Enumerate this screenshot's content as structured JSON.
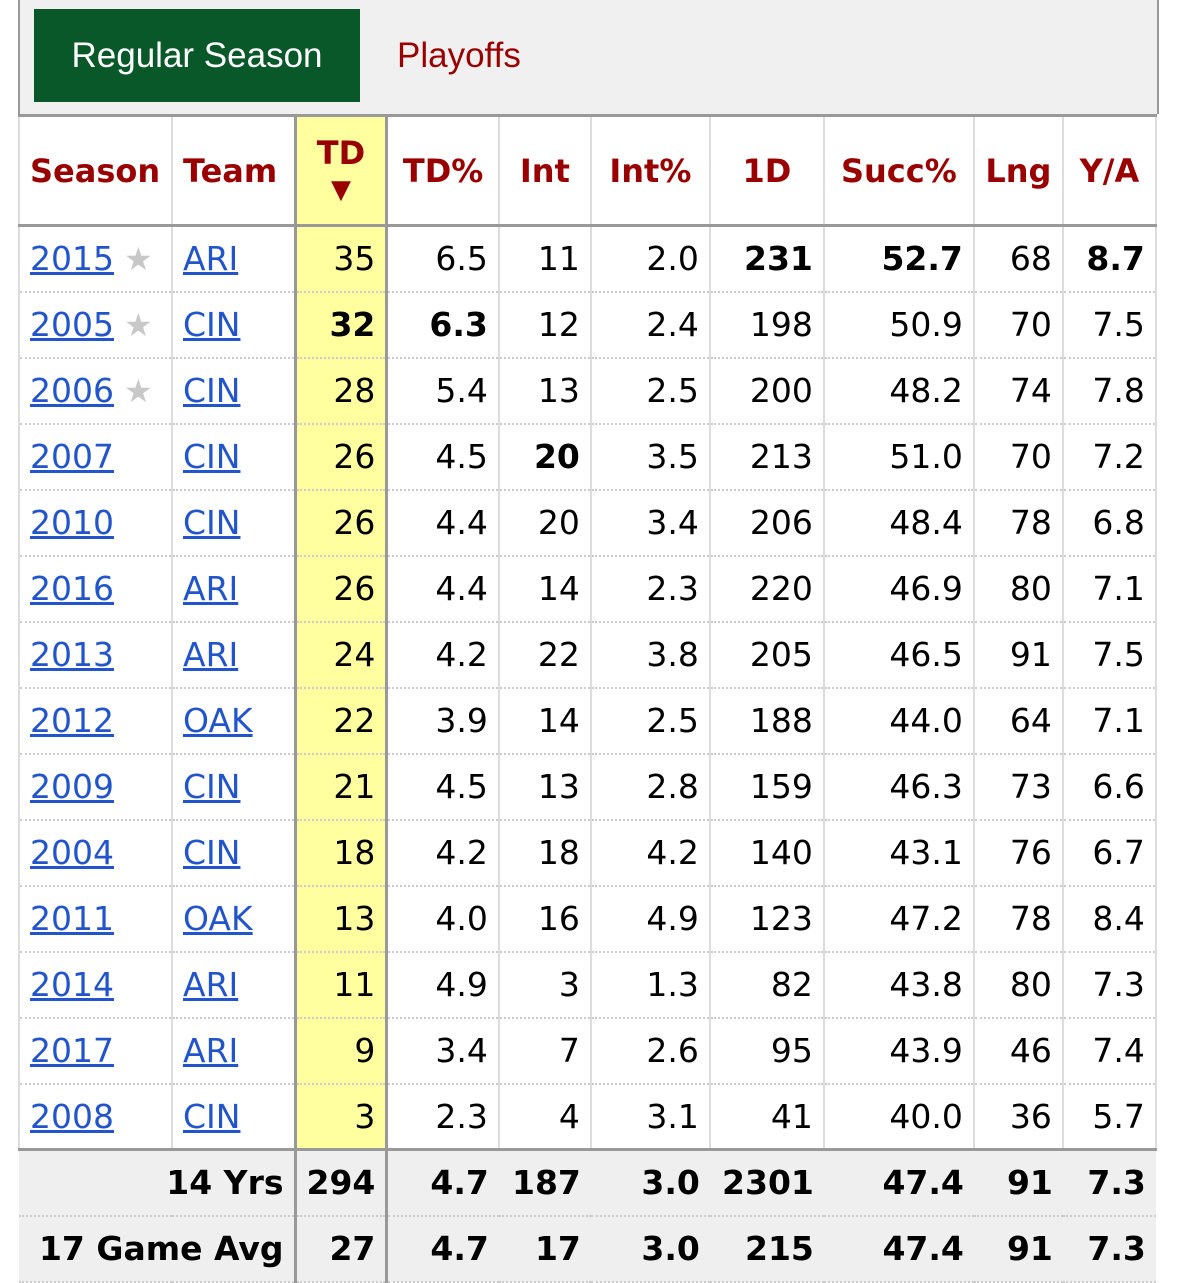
{
  "tabs": {
    "regular": "Regular Season",
    "playoffs": "Playoffs"
  },
  "headers": [
    "Season",
    "Team",
    "TD",
    "TD%",
    "Int",
    "Int%",
    "1D",
    "Succ%",
    "Lng",
    "Y/A"
  ],
  "sort_indicator": "▼",
  "rows": [
    {
      "season": "2015",
      "star": "★",
      "team": "ARI",
      "td": "35",
      "tdp": "6.5",
      "int": "11",
      "intp": "2.0",
      "fd": "231",
      "succ": "52.7",
      "lng": "68",
      "ya": "8.7"
    },
    {
      "season": "2005",
      "star": "★",
      "team": "CIN",
      "td": "32",
      "tdp": "6.3",
      "int": "12",
      "intp": "2.4",
      "fd": "198",
      "succ": "50.9",
      "lng": "70",
      "ya": "7.5"
    },
    {
      "season": "2006",
      "star": "★",
      "team": "CIN",
      "td": "28",
      "tdp": "5.4",
      "int": "13",
      "intp": "2.5",
      "fd": "200",
      "succ": "48.2",
      "lng": "74",
      "ya": "7.8"
    },
    {
      "season": "2007",
      "star": "",
      "team": "CIN",
      "td": "26",
      "tdp": "4.5",
      "int": "20",
      "intp": "3.5",
      "fd": "213",
      "succ": "51.0",
      "lng": "70",
      "ya": "7.2"
    },
    {
      "season": "2010",
      "star": "",
      "team": "CIN",
      "td": "26",
      "tdp": "4.4",
      "int": "20",
      "intp": "3.4",
      "fd": "206",
      "succ": "48.4",
      "lng": "78",
      "ya": "6.8"
    },
    {
      "season": "2016",
      "star": "",
      "team": "ARI",
      "td": "26",
      "tdp": "4.4",
      "int": "14",
      "intp": "2.3",
      "fd": "220",
      "succ": "46.9",
      "lng": "80",
      "ya": "7.1"
    },
    {
      "season": "2013",
      "star": "",
      "team": "ARI",
      "td": "24",
      "tdp": "4.2",
      "int": "22",
      "intp": "3.8",
      "fd": "205",
      "succ": "46.5",
      "lng": "91",
      "ya": "7.5"
    },
    {
      "season": "2012",
      "star": "",
      "team": "OAK",
      "td": "22",
      "tdp": "3.9",
      "int": "14",
      "intp": "2.5",
      "fd": "188",
      "succ": "44.0",
      "lng": "64",
      "ya": "7.1"
    },
    {
      "season": "2009",
      "star": "",
      "team": "CIN",
      "td": "21",
      "tdp": "4.5",
      "int": "13",
      "intp": "2.8",
      "fd": "159",
      "succ": "46.3",
      "lng": "73",
      "ya": "6.6"
    },
    {
      "season": "2004",
      "star": "",
      "team": "CIN",
      "td": "18",
      "tdp": "4.2",
      "int": "18",
      "intp": "4.2",
      "fd": "140",
      "succ": "43.1",
      "lng": "76",
      "ya": "6.7"
    },
    {
      "season": "2011",
      "star": "",
      "team": "OAK",
      "td": "13",
      "tdp": "4.0",
      "int": "16",
      "intp": "4.9",
      "fd": "123",
      "succ": "47.2",
      "lng": "78",
      "ya": "8.4"
    },
    {
      "season": "2014",
      "star": "",
      "team": "ARI",
      "td": "11",
      "tdp": "4.9",
      "int": "3",
      "intp": "1.3",
      "fd": "82",
      "succ": "43.8",
      "lng": "80",
      "ya": "7.3"
    },
    {
      "season": "2017",
      "star": "",
      "team": "ARI",
      "td": "9",
      "tdp": "3.4",
      "int": "7",
      "intp": "2.6",
      "fd": "95",
      "succ": "43.9",
      "lng": "46",
      "ya": "7.4"
    },
    {
      "season": "2008",
      "star": "",
      "team": "CIN",
      "td": "3",
      "tdp": "2.3",
      "int": "4",
      "intp": "3.1",
      "fd": "41",
      "succ": "40.0",
      "lng": "36",
      "ya": "5.7"
    }
  ],
  "bold_cells": [
    [
      0,
      "fd"
    ],
    [
      0,
      "succ"
    ],
    [
      0,
      "ya"
    ],
    [
      1,
      "td"
    ],
    [
      1,
      "tdp"
    ],
    [
      3,
      "int"
    ]
  ],
  "footer": [
    {
      "label": "14 Yrs",
      "td": "294",
      "tdp": "4.7",
      "int": "187",
      "intp": "3.0",
      "fd": "2301",
      "succ": "47.4",
      "lng": "91",
      "ya": "7.3"
    },
    {
      "label": "17 Game Avg",
      "td": "27",
      "tdp": "4.7",
      "int": "17",
      "intp": "3.0",
      "fd": "215",
      "succ": "47.4",
      "lng": "91",
      "ya": "7.3"
    }
  ]
}
